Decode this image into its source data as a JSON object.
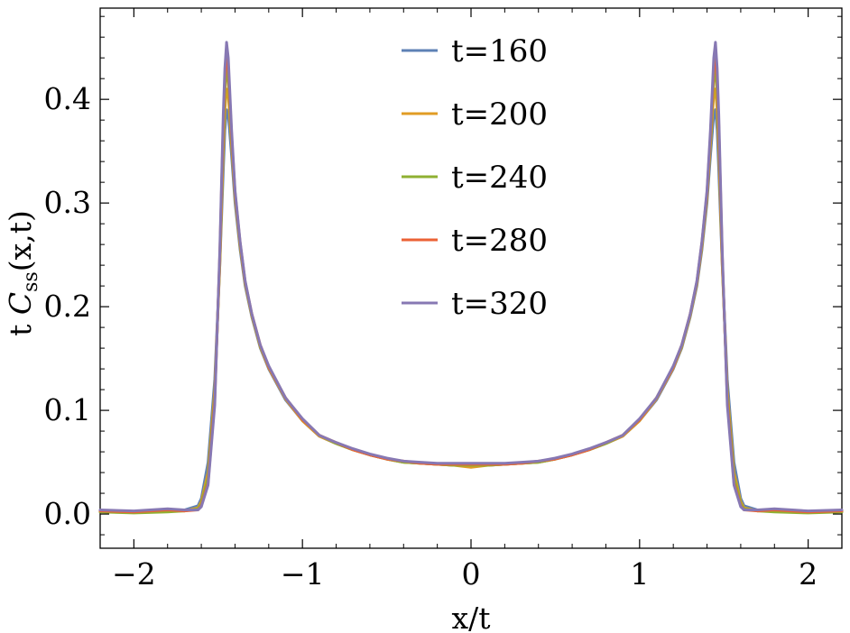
{
  "chart_data": {
    "type": "line",
    "title": "",
    "xlabel": "x/t",
    "ylabel": {
      "prefix": "t ",
      "main": "C",
      "sub": "ss",
      "suffix": "(x,t)"
    },
    "xlim": [
      -2.2,
      2.2
    ],
    "ylim": [
      -0.033,
      0.488
    ],
    "xticks": [
      {
        "value": -2,
        "label": "−2"
      },
      {
        "value": -1,
        "label": "−1"
      },
      {
        "value": 0,
        "label": "0"
      },
      {
        "value": 1,
        "label": "1"
      },
      {
        "value": 2,
        "label": "2"
      }
    ],
    "yticks": [
      {
        "value": 0.0,
        "label": "0.0"
      },
      {
        "value": 0.1,
        "label": "0.1"
      },
      {
        "value": 0.2,
        "label": "0.2"
      },
      {
        "value": 0.3,
        "label": "0.3"
      },
      {
        "value": 0.4,
        "label": "0.4"
      }
    ],
    "x_minor_step": 0.2,
    "y_minor_step": 0.02,
    "grid": false,
    "legend_position": "top-center",
    "x": [
      -2.2,
      -2.0,
      -1.8,
      -1.7,
      -1.62,
      -1.6,
      -1.56,
      -1.52,
      -1.49,
      -1.47,
      -1.46,
      -1.45,
      -1.44,
      -1.42,
      -1.4,
      -1.37,
      -1.34,
      -1.3,
      -1.25,
      -1.2,
      -1.1,
      -1.0,
      -0.9,
      -0.8,
      -0.7,
      -0.6,
      -0.5,
      -0.4,
      -0.3,
      -0.2,
      -0.1,
      0.0,
      0.1,
      0.2,
      0.3,
      0.4,
      0.5,
      0.6,
      0.7,
      0.8,
      0.9,
      1.0,
      1.1,
      1.2,
      1.25,
      1.3,
      1.34,
      1.37,
      1.4,
      1.42,
      1.44,
      1.45,
      1.46,
      1.47,
      1.49,
      1.52,
      1.56,
      1.6,
      1.62,
      1.7,
      1.8,
      2.0,
      2.2
    ],
    "series": [
      {
        "name": "t=160",
        "color": "#5e81b5",
        "values": [
          0.003,
          0.002,
          0.003,
          0.004,
          0.008,
          0.015,
          0.05,
          0.13,
          0.24,
          0.33,
          0.37,
          0.39,
          0.385,
          0.345,
          0.3,
          0.255,
          0.22,
          0.19,
          0.16,
          0.14,
          0.11,
          0.09,
          0.075,
          0.068,
          0.062,
          0.057,
          0.053,
          0.05,
          0.049,
          0.048,
          0.047,
          0.047,
          0.047,
          0.048,
          0.049,
          0.05,
          0.053,
          0.057,
          0.062,
          0.068,
          0.075,
          0.09,
          0.11,
          0.14,
          0.16,
          0.19,
          0.22,
          0.255,
          0.3,
          0.345,
          0.385,
          0.39,
          0.37,
          0.33,
          0.24,
          0.13,
          0.05,
          0.015,
          0.008,
          0.004,
          0.003,
          0.002,
          0.003
        ]
      },
      {
        "name": "t=200",
        "color": "#e19c24",
        "values": [
          0.003,
          0.002,
          0.003,
          0.003,
          0.006,
          0.012,
          0.04,
          0.12,
          0.24,
          0.35,
          0.39,
          0.41,
          0.405,
          0.355,
          0.305,
          0.258,
          0.222,
          0.191,
          0.161,
          0.141,
          0.111,
          0.09,
          0.075,
          0.068,
          0.062,
          0.057,
          0.053,
          0.05,
          0.049,
          0.048,
          0.047,
          0.045,
          0.047,
          0.048,
          0.049,
          0.05,
          0.053,
          0.057,
          0.062,
          0.068,
          0.075,
          0.09,
          0.111,
          0.141,
          0.161,
          0.191,
          0.222,
          0.258,
          0.305,
          0.355,
          0.405,
          0.41,
          0.39,
          0.35,
          0.24,
          0.12,
          0.04,
          0.012,
          0.006,
          0.003,
          0.003,
          0.002,
          0.003
        ]
      },
      {
        "name": "t=240",
        "color": "#8fb032",
        "values": [
          0.002,
          0.001,
          0.002,
          0.003,
          0.005,
          0.01,
          0.035,
          0.115,
          0.245,
          0.365,
          0.405,
          0.43,
          0.42,
          0.36,
          0.308,
          0.26,
          0.223,
          0.192,
          0.162,
          0.142,
          0.112,
          0.091,
          0.076,
          0.068,
          0.062,
          0.057,
          0.053,
          0.05,
          0.049,
          0.048,
          0.047,
          0.047,
          0.047,
          0.048,
          0.049,
          0.05,
          0.053,
          0.057,
          0.062,
          0.068,
          0.076,
          0.091,
          0.112,
          0.142,
          0.162,
          0.192,
          0.223,
          0.26,
          0.308,
          0.36,
          0.42,
          0.43,
          0.405,
          0.365,
          0.245,
          0.115,
          0.035,
          0.01,
          0.005,
          0.003,
          0.002,
          0.001,
          0.002
        ]
      },
      {
        "name": "t=280",
        "color": "#eb6235",
        "values": [
          0.003,
          0.002,
          0.004,
          0.003,
          0.004,
          0.008,
          0.03,
          0.11,
          0.25,
          0.375,
          0.42,
          0.443,
          0.43,
          0.365,
          0.31,
          0.262,
          0.224,
          0.193,
          0.163,
          0.142,
          0.112,
          0.091,
          0.076,
          0.069,
          0.062,
          0.057,
          0.053,
          0.051,
          0.049,
          0.048,
          0.048,
          0.048,
          0.048,
          0.048,
          0.049,
          0.051,
          0.053,
          0.057,
          0.062,
          0.069,
          0.076,
          0.091,
          0.112,
          0.142,
          0.163,
          0.193,
          0.224,
          0.262,
          0.31,
          0.365,
          0.43,
          0.443,
          0.42,
          0.375,
          0.25,
          0.11,
          0.03,
          0.008,
          0.004,
          0.003,
          0.004,
          0.002,
          0.003
        ]
      },
      {
        "name": "t=320",
        "color": "#8778b3",
        "values": [
          0.004,
          0.003,
          0.005,
          0.004,
          0.004,
          0.007,
          0.028,
          0.105,
          0.255,
          0.385,
          0.43,
          0.455,
          0.44,
          0.37,
          0.312,
          0.263,
          0.225,
          0.193,
          0.163,
          0.143,
          0.112,
          0.092,
          0.076,
          0.069,
          0.063,
          0.058,
          0.054,
          0.051,
          0.05,
          0.049,
          0.049,
          0.049,
          0.049,
          0.049,
          0.05,
          0.051,
          0.054,
          0.058,
          0.063,
          0.069,
          0.076,
          0.092,
          0.112,
          0.143,
          0.163,
          0.193,
          0.225,
          0.263,
          0.312,
          0.37,
          0.44,
          0.455,
          0.43,
          0.385,
          0.255,
          0.105,
          0.028,
          0.007,
          0.004,
          0.004,
          0.005,
          0.003,
          0.004
        ]
      }
    ]
  }
}
